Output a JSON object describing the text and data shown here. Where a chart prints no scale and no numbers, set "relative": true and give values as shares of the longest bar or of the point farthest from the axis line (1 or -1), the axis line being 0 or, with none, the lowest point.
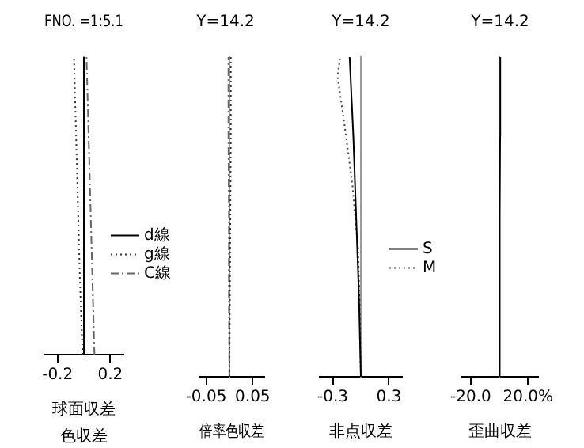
{
  "chart_data": [
    {
      "type": "line",
      "title": "FNO. =1:5.1",
      "xlabel": "球面収差",
      "annotations": [
        "色収差"
      ],
      "xlim": [
        -0.3,
        0.3
      ],
      "xticks": [
        -0.2,
        0.2
      ],
      "relative": true,
      "tick_labels": "x",
      "grid": false,
      "legend": "right",
      "marker": "none",
      "series": [
        {
          "name": "d線",
          "color": "#000000",
          "line_style": "solid",
          "x": [
            0,
            0,
            0,
            0,
            0
          ],
          "values": [
            0,
            0.25,
            0.5,
            0.75,
            1
          ]
        },
        {
          "name": "g線",
          "color": "#333333",
          "line_style": "dotted",
          "x": [
            -0.01,
            -0.03,
            -0.045,
            -0.06,
            -0.075
          ],
          "values": [
            0,
            0.25,
            0.5,
            0.75,
            1
          ]
        },
        {
          "name": "C線",
          "color": "#666666",
          "line_style": "dashed",
          "x": [
            0.08,
            0.065,
            0.05,
            0.035,
            0.02
          ],
          "values": [
            0,
            0.25,
            0.5,
            0.75,
            1
          ]
        }
      ]
    },
    {
      "type": "line",
      "title": "Y=14.2",
      "xlabel": "倍率色収差",
      "xlim": [
        -0.065,
        0.075
      ],
      "xticks": [
        -0.05,
        0.05
      ],
      "relative": true,
      "tick_labels": "x",
      "grid": false,
      "marker": "none",
      "series": [
        {
          "color": "#333333",
          "line_style": "dotted",
          "x": [
            0,
            0.001,
            0.002,
            0.003,
            0.003
          ],
          "values": [
            0,
            0.25,
            0.5,
            0.75,
            1
          ]
        },
        {
          "color": "#666666",
          "line_style": "dashed",
          "x": [
            0,
            -0.001,
            -0.001,
            -0.002,
            -0.002
          ],
          "values": [
            0,
            0.25,
            0.5,
            0.75,
            1
          ]
        }
      ]
    },
    {
      "type": "line",
      "title": "Y=14.2",
      "xlabel": "非点収差",
      "xlim": [
        -0.44,
        0.44
      ],
      "xticks": [
        -0.3,
        0.3
      ],
      "relative": true,
      "tick_labels": "x",
      "grid": false,
      "legend": "right",
      "marker": "none",
      "series": [
        {
          "name": "S",
          "color": "#000000",
          "line_style": "solid",
          "x": [
            0,
            -0.02,
            -0.05,
            -0.08,
            -0.12
          ],
          "values": [
            0,
            0.25,
            0.5,
            0.75,
            1
          ]
        },
        {
          "name": "M",
          "color": "#444444",
          "line_style": "dotted",
          "x": [
            0,
            -0.01,
            -0.03,
            -0.09,
            -0.18,
            -0.25,
            -0.22
          ],
          "values": [
            0,
            0.2,
            0.4,
            0.6,
            0.8,
            0.94,
            1
          ]
        }
      ]
    },
    {
      "type": "line",
      "title": "Y=14.2",
      "xlabel": "歪曲収差",
      "xlim": [
        -26,
        27
      ],
      "xticks": [
        {
          "value": -20,
          "label": "-20.0"
        },
        {
          "value": 20,
          "label": "20.0%"
        }
      ],
      "relative": true,
      "tick_labels": "x",
      "grid": false,
      "marker": "none",
      "series": [
        {
          "color": "#000000",
          "line_style": "solid",
          "x": [
            0,
            0.1,
            0.3,
            0.5,
            0.6
          ],
          "values": [
            0,
            0.25,
            0.5,
            0.75,
            1
          ]
        }
      ]
    }
  ]
}
